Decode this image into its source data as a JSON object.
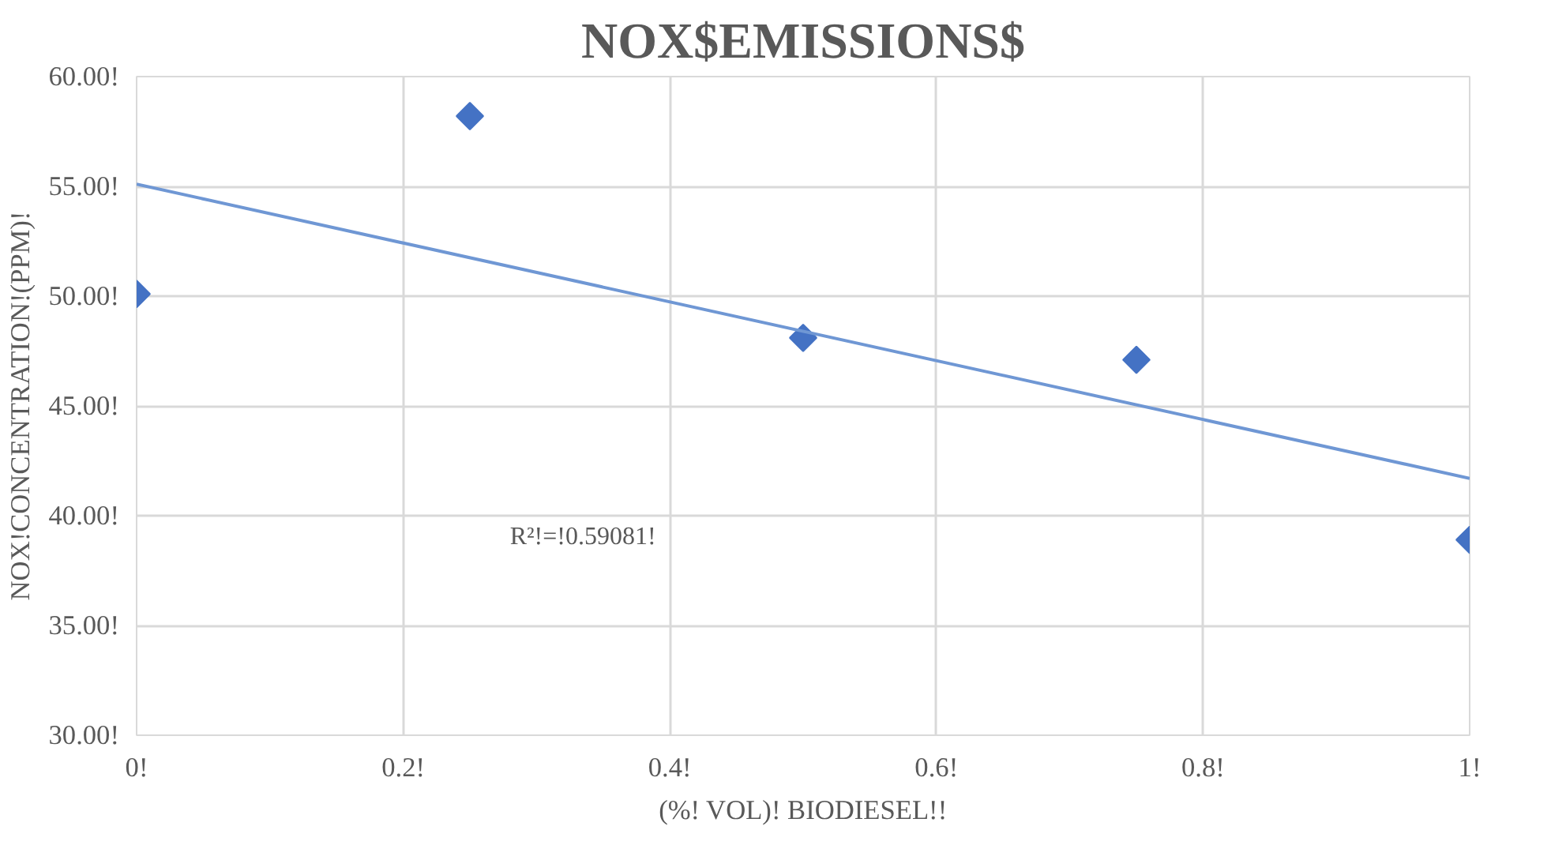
{
  "chart_data": {
    "type": "scatter",
    "title": "NOX$EMISSIONS$",
    "xlabel": "(%! VOL)! BIODIESEL!!",
    "ylabel": "NOX!CONCENTRATION!(PPM)!",
    "annotations": [
      "R²!=!0.59081!"
    ],
    "xlim": [
      0,
      1
    ],
    "ylim": [
      30,
      60
    ],
    "xticks": [
      {
        "value": 0,
        "label": "0!"
      },
      {
        "value": 0.2,
        "label": "0.2!"
      },
      {
        "value": 0.4,
        "label": "0.4!"
      },
      {
        "value": 0.6,
        "label": "0.6!"
      },
      {
        "value": 0.8,
        "label": "0.8!"
      },
      {
        "value": 1,
        "label": "1!"
      }
    ],
    "yticks": [
      {
        "value": 30,
        "label": "30.00!"
      },
      {
        "value": 35,
        "label": "35.00!"
      },
      {
        "value": 40,
        "label": "40.00!"
      },
      {
        "value": 45,
        "label": "45.00!"
      },
      {
        "value": 50,
        "label": "50.00!"
      },
      {
        "value": 55,
        "label": "55.00!"
      },
      {
        "value": 60,
        "label": "60.00!"
      }
    ],
    "grid": true,
    "series": [
      {
        "marker": "diamond",
        "color": "#4472c4",
        "x": [
          0,
          0.25,
          0.5,
          0.75,
          1
        ],
        "values": [
          50.1,
          58.2,
          48.1,
          47.1,
          38.9
        ]
      },
      {
        "type": "line",
        "color": "#6f97d4",
        "x": [
          0,
          1
        ],
        "values": [
          55.1,
          41.7
        ]
      }
    ]
  }
}
